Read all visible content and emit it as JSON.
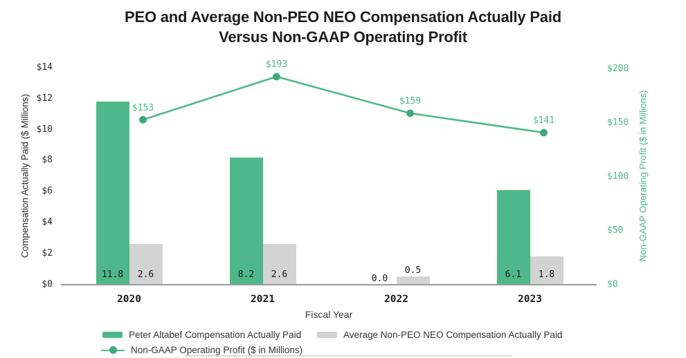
{
  "title": {
    "line1": "PEO and Average Non-PEO NEO Compensation Actually Paid",
    "line2": "Versus Non-GAAP Operating Profit"
  },
  "chart_data": {
    "type": "bar+line combo",
    "categories": [
      "2020",
      "2021",
      "2022",
      "2023"
    ],
    "series": [
      {
        "name": "Peter Altabef Compensation Actually Paid",
        "type": "bar",
        "axis": "left",
        "values": [
          11.8,
          8.2,
          0.0,
          6.1
        ],
        "value_labels": [
          "11.8",
          "8.2",
          "0.0",
          "6.1"
        ],
        "color": "#4FB88A"
      },
      {
        "name": "Average Non-PEO NEO Compensation Actually Paid",
        "type": "bar",
        "axis": "left",
        "values": [
          2.6,
          2.6,
          0.5,
          1.8
        ],
        "value_labels": [
          "2.6",
          "2.6",
          "0.5",
          "1.8"
        ],
        "color": "#D3D3D3"
      },
      {
        "name": "Non-GAAP Operating Profit ($ in Millions)",
        "type": "line",
        "axis": "right",
        "values": [
          153,
          193,
          159,
          141
        ],
        "value_labels": [
          "$153",
          "$193",
          "$159",
          "$141"
        ],
        "color": "#4FB88A",
        "marker_color": "#3FA97B"
      }
    ],
    "left_axis": {
      "title": "Compensation Actually Paid ($ Millions)",
      "tick_labels": [
        "$0",
        "$2",
        "$4",
        "$6",
        "$8",
        "$10",
        "$12",
        "$14"
      ],
      "tick_values": [
        0,
        2,
        4,
        6,
        8,
        10,
        12,
        14
      ],
      "range": [
        0,
        14
      ]
    },
    "right_axis": {
      "title": "Non-GAAP Operating Profit ($ in Millions)",
      "tick_labels": [
        "$0",
        "$50",
        "$100",
        "$150",
        "$200"
      ],
      "tick_values": [
        0,
        50,
        100,
        150,
        200
      ],
      "range": [
        0,
        200
      ]
    },
    "x_axis": {
      "title": "Fiscal Year"
    },
    "legend": {
      "position": "bottom-left",
      "entries": [
        {
          "label": "Peter Altabef Compensation Actually Paid",
          "swatch": "bar",
          "color": "#4FB88A"
        },
        {
          "label": "Average Non-PEO NEO Compensation Actually Paid",
          "swatch": "bar",
          "color": "#D0D0D0"
        },
        {
          "label": "Non-GAAP Operating Profit ($ in Millions)",
          "swatch": "line-marker",
          "color": "#4FB88A"
        }
      ]
    },
    "grid": "off"
  },
  "colors": {
    "green": "#4FB88A",
    "marker_green": "#3FA97B",
    "bar_gray": "#D3D3D3",
    "axis_line": "#9B9B9B",
    "title_text": "#1E1E20",
    "tick_text": "#2B2B2B",
    "legend_text": "#333333",
    "divider": "#DADADA"
  }
}
